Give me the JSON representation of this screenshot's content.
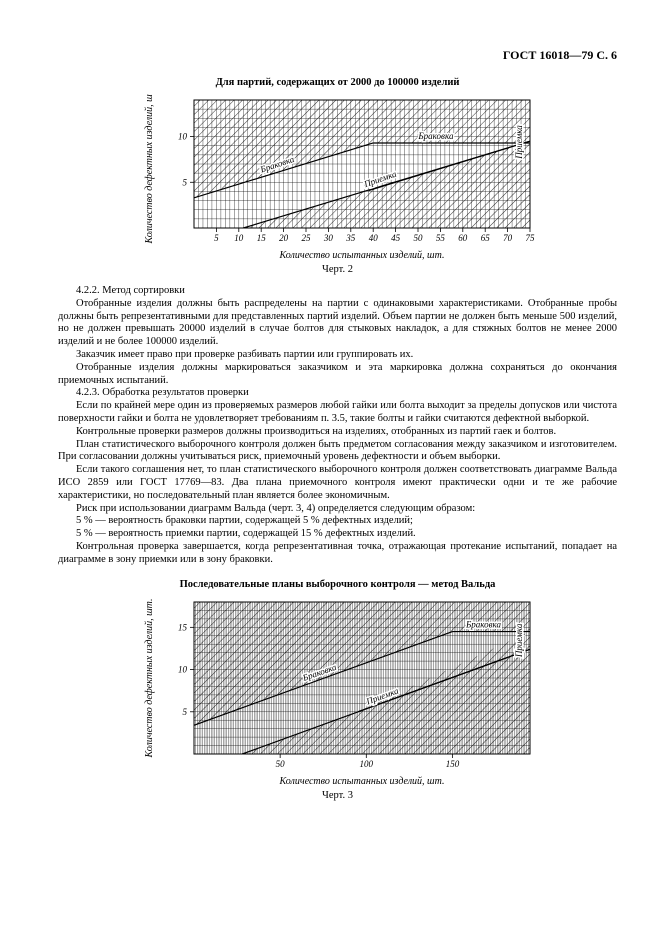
{
  "header": {
    "doc_id": "ГОСТ 16018—79 С. 6"
  },
  "chart1": {
    "type": "wald-sampling-diagram",
    "title": "Для партий, содержащих от 2000 до 100000 изделий",
    "caption": "Черт. 2",
    "x_label": "Количество испытанных изделий, шт.",
    "y_label": "Количество дефектных изделий, шт.",
    "x_ticks": [
      5,
      10,
      15,
      20,
      25,
      30,
      35,
      40,
      45,
      50,
      55,
      60,
      65,
      70,
      75
    ],
    "y_ticks": [
      5,
      10
    ],
    "xlim": [
      0,
      75
    ],
    "ylim": [
      0,
      14
    ],
    "grid": true,
    "grid_color": "#000000",
    "background_color": "#ffffff",
    "line_color": "#000000",
    "line_width": 1.2,
    "hatch_color": "#000000",
    "labels": {
      "brakovka_upper": "Браковка",
      "brakovka_band": "Браковка",
      "priemka_upper": "Приемка",
      "priemka_right": "Приемка"
    },
    "accept_line": {
      "x1": 11,
      "y1": 0,
      "x2": 75,
      "y2": 9.5
    },
    "accept_line_upper": {
      "x1": 39,
      "y1": 4.1,
      "x2": 75,
      "y2": 9.5
    },
    "reject_line": {
      "x1": 0,
      "y1": 3.3,
      "x2": 40,
      "y2": 9.3
    },
    "reject_line_step_x": 40,
    "reject_upper_y": 9.3,
    "tick_fontsize": 9,
    "label_fontsize_pt": 10
  },
  "chart2": {
    "type": "wald-sampling-diagram",
    "title": "Последовательные планы выборочного контроля — метод Вальда",
    "caption": "Черт. 3",
    "x_label": "Количество испытанных изделий, шт.",
    "y_label": "Количество дефектных изделий, шт.",
    "x_ticks": [
      50,
      100,
      150
    ],
    "y_ticks": [
      5,
      10,
      15
    ],
    "xlim": [
      0,
      195
    ],
    "ylim": [
      0,
      18
    ],
    "grid": true,
    "grid_color": "#000000",
    "background_color": "#ffffff",
    "line_color": "#000000",
    "line_width": 1.2,
    "hatch_color": "#000000",
    "labels": {
      "brakovka_upper": "Браковка",
      "brakovka_band": "Браковка",
      "priemka_upper": "Приемка",
      "priemka_right": "Приемка"
    },
    "accept_line": {
      "x1": 28,
      "y1": 0,
      "x2": 195,
      "y2": 12.4
    },
    "accept_line_upper": {
      "x1": 95,
      "y1": 5,
      "x2": 195,
      "y2": 12.4
    },
    "reject_line": {
      "x1": 0,
      "y1": 3.4,
      "x2": 150,
      "y2": 14.5
    },
    "reject_line_step_x": 150,
    "reject_upper_y": 14.5,
    "tick_fontsize": 9,
    "label_fontsize_pt": 10
  },
  "text": {
    "p1": "4.2.2. Метод сортировки",
    "p2": "Отобранные изделия должны быть распределены на партии с одинаковыми характеристиками. Отобранные пробы должны быть репрезентативными для представленных партий изделий. Объем партии не должен быть меньше 500 изделий, но не должен превышать 20000 изделий в случае болтов для стыковых накладок, а для стяжных болтов не менее 2000 изделий и не более 100000 изделий.",
    "p3": "Заказчик имеет право при проверке разбивать партии или группировать их.",
    "p4": "Отобранные изделия должны маркироваться заказчиком и эта маркировка должна сохраняться до окончания приемочных испытаний.",
    "p5": "4.2.3. Обработка результатов проверки",
    "p6": "Если по крайней мере один из проверяемых размеров любой гайки или болта выходит за пределы допусков или чистота поверхности гайки и болта не удовлетворяет требованиям п. 3.5, такие болты и гайки считаются дефектной выборкой.",
    "p7": "Контрольные проверки размеров должны производиться на изделиях, отобранных из партий гаек и болтов.",
    "p8": "План статистического выборочного контроля должен быть предметом согласования между заказчиком и изготовителем. При согласовании должны учитываться риск, приемочный уровень дефектности и объем выборки.",
    "p9": "Если такого соглашения нет, то план статистического выборочного контроля должен соответствовать диаграмме Вальда ИСО 2859 или ГОСТ 17769—83. Два плана приемочного контроля имеют практически одни и те же рабочие характеристики, но последовательный план является более экономичным.",
    "p10": "Риск при использовании диаграмм Вальда (черт. 3, 4) определяется следующим образом:",
    "p11": "5 % — вероятность браковки партии, содержащей 5 % дефектных изделий;",
    "p12": "5 % — вероятность приемки партии, содержащей 15 % дефектных изделий.",
    "p13": "Контрольная проверка завершается, когда репрезентативная точка, отражающая протекание испытаний, попадает на диаграмме в зону приемки или в зону браковки."
  }
}
